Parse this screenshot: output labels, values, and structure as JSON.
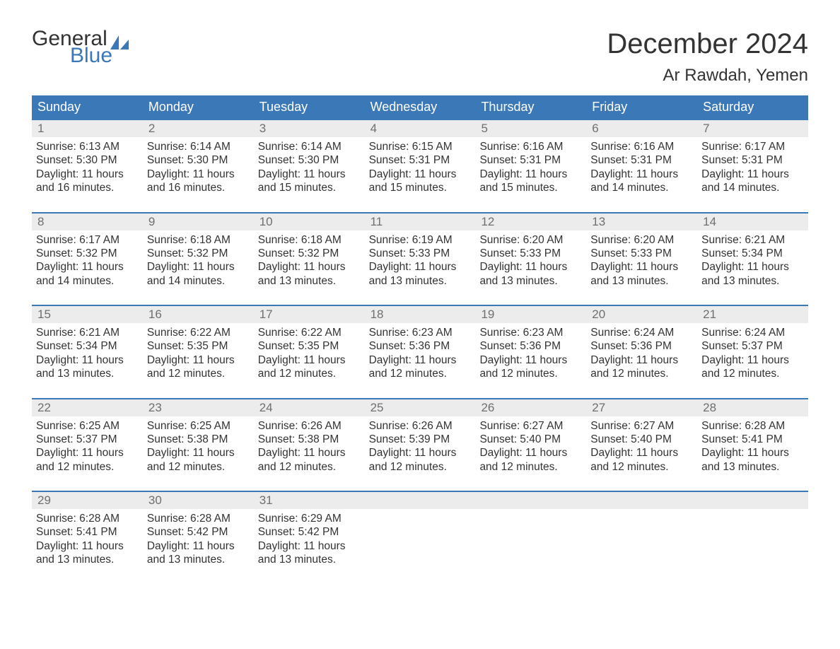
{
  "brand": {
    "word1": "General",
    "word2": "Blue",
    "text_color": "#333333",
    "accent_color": "#3b78b8"
  },
  "title": "December 2024",
  "location": "Ar Rawdah, Yemen",
  "colors": {
    "header_bg": "#3b78b8",
    "header_text": "#ffffff",
    "row_rule": "#3b78b8",
    "daynum_bg": "#ececec",
    "daynum_text": "#6f6f6f",
    "body_text": "#333333",
    "page_bg": "#ffffff"
  },
  "typography": {
    "title_fontsize": 40,
    "location_fontsize": 24,
    "weekday_fontsize": 18,
    "daynum_fontsize": 17,
    "body_fontsize": 15.5,
    "font_family": "Arial"
  },
  "weekdays": [
    "Sunday",
    "Monday",
    "Tuesday",
    "Wednesday",
    "Thursday",
    "Friday",
    "Saturday"
  ],
  "weeks": [
    [
      {
        "n": "1",
        "sunrise": "Sunrise: 6:13 AM",
        "sunset": "Sunset: 5:30 PM",
        "day1": "Daylight: 11 hours",
        "day2": "and 16 minutes."
      },
      {
        "n": "2",
        "sunrise": "Sunrise: 6:14 AM",
        "sunset": "Sunset: 5:30 PM",
        "day1": "Daylight: 11 hours",
        "day2": "and 16 minutes."
      },
      {
        "n": "3",
        "sunrise": "Sunrise: 6:14 AM",
        "sunset": "Sunset: 5:30 PM",
        "day1": "Daylight: 11 hours",
        "day2": "and 15 minutes."
      },
      {
        "n": "4",
        "sunrise": "Sunrise: 6:15 AM",
        "sunset": "Sunset: 5:31 PM",
        "day1": "Daylight: 11 hours",
        "day2": "and 15 minutes."
      },
      {
        "n": "5",
        "sunrise": "Sunrise: 6:16 AM",
        "sunset": "Sunset: 5:31 PM",
        "day1": "Daylight: 11 hours",
        "day2": "and 15 minutes."
      },
      {
        "n": "6",
        "sunrise": "Sunrise: 6:16 AM",
        "sunset": "Sunset: 5:31 PM",
        "day1": "Daylight: 11 hours",
        "day2": "and 14 minutes."
      },
      {
        "n": "7",
        "sunrise": "Sunrise: 6:17 AM",
        "sunset": "Sunset: 5:31 PM",
        "day1": "Daylight: 11 hours",
        "day2": "and 14 minutes."
      }
    ],
    [
      {
        "n": "8",
        "sunrise": "Sunrise: 6:17 AM",
        "sunset": "Sunset: 5:32 PM",
        "day1": "Daylight: 11 hours",
        "day2": "and 14 minutes."
      },
      {
        "n": "9",
        "sunrise": "Sunrise: 6:18 AM",
        "sunset": "Sunset: 5:32 PM",
        "day1": "Daylight: 11 hours",
        "day2": "and 14 minutes."
      },
      {
        "n": "10",
        "sunrise": "Sunrise: 6:18 AM",
        "sunset": "Sunset: 5:32 PM",
        "day1": "Daylight: 11 hours",
        "day2": "and 13 minutes."
      },
      {
        "n": "11",
        "sunrise": "Sunrise: 6:19 AM",
        "sunset": "Sunset: 5:33 PM",
        "day1": "Daylight: 11 hours",
        "day2": "and 13 minutes."
      },
      {
        "n": "12",
        "sunrise": "Sunrise: 6:20 AM",
        "sunset": "Sunset: 5:33 PM",
        "day1": "Daylight: 11 hours",
        "day2": "and 13 minutes."
      },
      {
        "n": "13",
        "sunrise": "Sunrise: 6:20 AM",
        "sunset": "Sunset: 5:33 PM",
        "day1": "Daylight: 11 hours",
        "day2": "and 13 minutes."
      },
      {
        "n": "14",
        "sunrise": "Sunrise: 6:21 AM",
        "sunset": "Sunset: 5:34 PM",
        "day1": "Daylight: 11 hours",
        "day2": "and 13 minutes."
      }
    ],
    [
      {
        "n": "15",
        "sunrise": "Sunrise: 6:21 AM",
        "sunset": "Sunset: 5:34 PM",
        "day1": "Daylight: 11 hours",
        "day2": "and 13 minutes."
      },
      {
        "n": "16",
        "sunrise": "Sunrise: 6:22 AM",
        "sunset": "Sunset: 5:35 PM",
        "day1": "Daylight: 11 hours",
        "day2": "and 12 minutes."
      },
      {
        "n": "17",
        "sunrise": "Sunrise: 6:22 AM",
        "sunset": "Sunset: 5:35 PM",
        "day1": "Daylight: 11 hours",
        "day2": "and 12 minutes."
      },
      {
        "n": "18",
        "sunrise": "Sunrise: 6:23 AM",
        "sunset": "Sunset: 5:36 PM",
        "day1": "Daylight: 11 hours",
        "day2": "and 12 minutes."
      },
      {
        "n": "19",
        "sunrise": "Sunrise: 6:23 AM",
        "sunset": "Sunset: 5:36 PM",
        "day1": "Daylight: 11 hours",
        "day2": "and 12 minutes."
      },
      {
        "n": "20",
        "sunrise": "Sunrise: 6:24 AM",
        "sunset": "Sunset: 5:36 PM",
        "day1": "Daylight: 11 hours",
        "day2": "and 12 minutes."
      },
      {
        "n": "21",
        "sunrise": "Sunrise: 6:24 AM",
        "sunset": "Sunset: 5:37 PM",
        "day1": "Daylight: 11 hours",
        "day2": "and 12 minutes."
      }
    ],
    [
      {
        "n": "22",
        "sunrise": "Sunrise: 6:25 AM",
        "sunset": "Sunset: 5:37 PM",
        "day1": "Daylight: 11 hours",
        "day2": "and 12 minutes."
      },
      {
        "n": "23",
        "sunrise": "Sunrise: 6:25 AM",
        "sunset": "Sunset: 5:38 PM",
        "day1": "Daylight: 11 hours",
        "day2": "and 12 minutes."
      },
      {
        "n": "24",
        "sunrise": "Sunrise: 6:26 AM",
        "sunset": "Sunset: 5:38 PM",
        "day1": "Daylight: 11 hours",
        "day2": "and 12 minutes."
      },
      {
        "n": "25",
        "sunrise": "Sunrise: 6:26 AM",
        "sunset": "Sunset: 5:39 PM",
        "day1": "Daylight: 11 hours",
        "day2": "and 12 minutes."
      },
      {
        "n": "26",
        "sunrise": "Sunrise: 6:27 AM",
        "sunset": "Sunset: 5:40 PM",
        "day1": "Daylight: 11 hours",
        "day2": "and 12 minutes."
      },
      {
        "n": "27",
        "sunrise": "Sunrise: 6:27 AM",
        "sunset": "Sunset: 5:40 PM",
        "day1": "Daylight: 11 hours",
        "day2": "and 12 minutes."
      },
      {
        "n": "28",
        "sunrise": "Sunrise: 6:28 AM",
        "sunset": "Sunset: 5:41 PM",
        "day1": "Daylight: 11 hours",
        "day2": "and 13 minutes."
      }
    ],
    [
      {
        "n": "29",
        "sunrise": "Sunrise: 6:28 AM",
        "sunset": "Sunset: 5:41 PM",
        "day1": "Daylight: 11 hours",
        "day2": "and 13 minutes."
      },
      {
        "n": "30",
        "sunrise": "Sunrise: 6:28 AM",
        "sunset": "Sunset: 5:42 PM",
        "day1": "Daylight: 11 hours",
        "day2": "and 13 minutes."
      },
      {
        "n": "31",
        "sunrise": "Sunrise: 6:29 AM",
        "sunset": "Sunset: 5:42 PM",
        "day1": "Daylight: 11 hours",
        "day2": "and 13 minutes."
      },
      {
        "empty": true
      },
      {
        "empty": true
      },
      {
        "empty": true
      },
      {
        "empty": true
      }
    ]
  ]
}
